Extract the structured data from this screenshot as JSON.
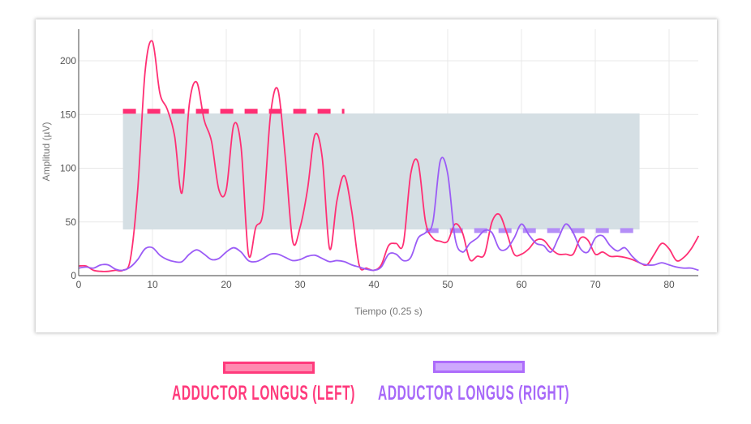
{
  "chart_data": {
    "type": "line",
    "title": "",
    "xlabel": "Tiempo (0.25 s)",
    "ylabel": "Amplitud (µV)",
    "xlim": [
      0,
      84
    ],
    "ylim": [
      0,
      225
    ],
    "xticks": [
      0,
      10,
      20,
      30,
      40,
      50,
      60,
      70,
      80
    ],
    "yticks": [
      0,
      50,
      100,
      150,
      200
    ],
    "grid": true,
    "legend_placement": "bottom",
    "x": [
      0,
      1,
      2,
      3,
      4,
      5,
      6,
      7,
      8,
      9,
      10,
      11,
      12,
      13,
      14,
      15,
      16,
      17,
      18,
      19,
      20,
      21,
      22,
      23,
      24,
      25,
      26,
      27,
      28,
      29,
      30,
      31,
      32,
      33,
      34,
      35,
      36,
      37,
      38,
      39,
      40,
      41,
      42,
      43,
      44,
      45,
      46,
      47,
      48,
      49,
      50,
      51,
      52,
      53,
      54,
      55,
      56,
      57,
      58,
      59,
      60,
      61,
      62,
      63,
      64,
      65,
      66,
      67,
      68,
      69,
      70,
      71,
      72,
      73,
      74,
      75,
      76,
      77,
      78,
      79,
      80,
      81,
      82,
      83,
      84
    ],
    "series": [
      {
        "name": "ADDUCTOR LONGUS (LEFT)",
        "color": "#ff2f74",
        "values": [
          9,
          9,
          5,
          4,
          4,
          5,
          5,
          15,
          80,
          190,
          218,
          170,
          155,
          130,
          77,
          160,
          180,
          145,
          125,
          80,
          80,
          140,
          120,
          20,
          45,
          60,
          150,
          173,
          110,
          32,
          45,
          80,
          131,
          110,
          25,
          70,
          93,
          60,
          10,
          7,
          5,
          10,
          28,
          30,
          30,
          95,
          105,
          50,
          35,
          32,
          32,
          48,
          40,
          15,
          18,
          20,
          50,
          57,
          40,
          20,
          20,
          25,
          33,
          33,
          25,
          20,
          20,
          20,
          35,
          33,
          20,
          22,
          18,
          18,
          17,
          15,
          12,
          10,
          20,
          30,
          25,
          14,
          17,
          25,
          37
        ]
      },
      {
        "name": "ADDUCTOR LONGUS (RIGHT)",
        "color": "#9b5cf6",
        "values": [
          7,
          8,
          7,
          10,
          10,
          6,
          5,
          8,
          15,
          25,
          26,
          19,
          15,
          13,
          13,
          20,
          24,
          20,
          15,
          16,
          22,
          26,
          22,
          14,
          13,
          16,
          20,
          20,
          17,
          14,
          15,
          18,
          19,
          16,
          13,
          14,
          13,
          10,
          8,
          6,
          5,
          8,
          20,
          20,
          14,
          17,
          35,
          40,
          50,
          107,
          95,
          35,
          22,
          30,
          35,
          42,
          40,
          25,
          25,
          35,
          48,
          38,
          30,
          28,
          22,
          35,
          48,
          40,
          25,
          22,
          35,
          37,
          28,
          23,
          26,
          18,
          12,
          10,
          10,
          12,
          10,
          8,
          7,
          7,
          5
        ]
      }
    ],
    "band": {
      "x": [
        6,
        76
      ],
      "y": [
        43,
        151
      ],
      "color": "#d5dfe4"
    },
    "thresholds": [
      {
        "series": "ADDUCTOR LONGUS (LEFT)",
        "y": 153,
        "x": [
          6,
          36
        ],
        "color": "#ff2f74"
      },
      {
        "series": "ADDUCTOR LONGUS (RIGHT)",
        "y": 42,
        "x": [
          47,
          76
        ],
        "color": "#b48ef7"
      }
    ]
  },
  "legend": {
    "left": {
      "label": "ADDUCTOR LONGUS (LEFT)",
      "text_color": "#ff3a7c",
      "fill": "#ff8ab0",
      "border": "#ff3a7c"
    },
    "right": {
      "label": "ADDUCTOR LONGUS (RIGHT)",
      "text_color": "#a768f9",
      "fill": "#cda8fd",
      "border": "#ad6cfb"
    }
  }
}
